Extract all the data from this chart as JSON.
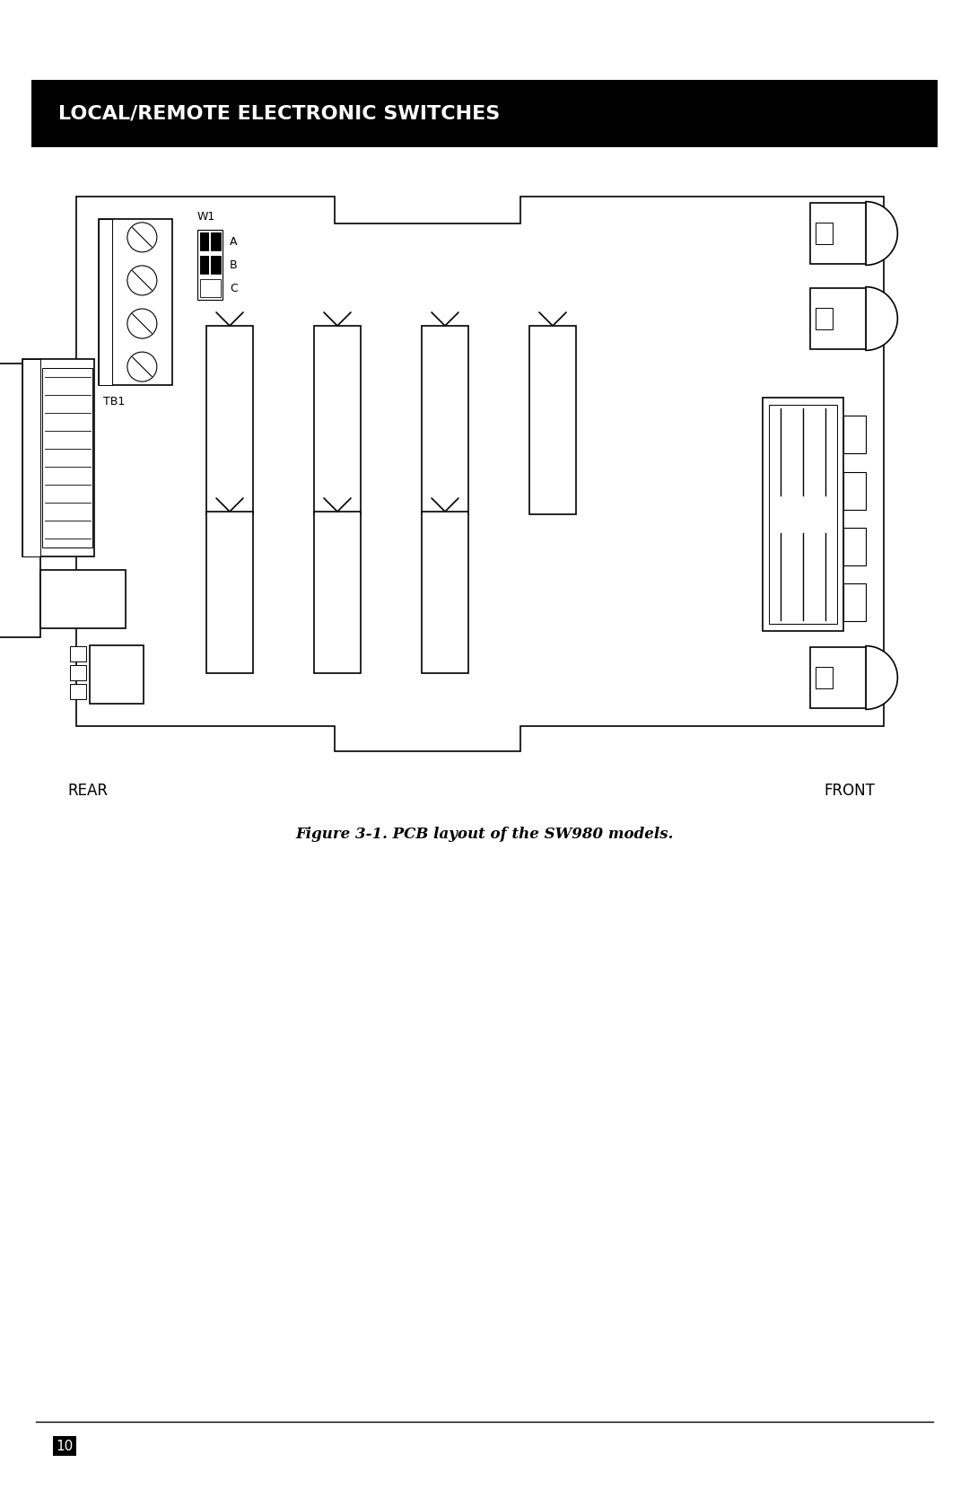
{
  "title": "LOCAL/REMOTE ELECTRONIC SWITCHES",
  "figure_caption": "Figure 3-1. PCB layout of the SW980 models.",
  "page_number": "10",
  "bg_color": "#ffffff",
  "line_color": "#000000",
  "header_bg": "#000000",
  "header_text_color": "#ffffff",
  "rear_label": "REAR",
  "front_label": "FRONT",
  "lw": 1.2
}
